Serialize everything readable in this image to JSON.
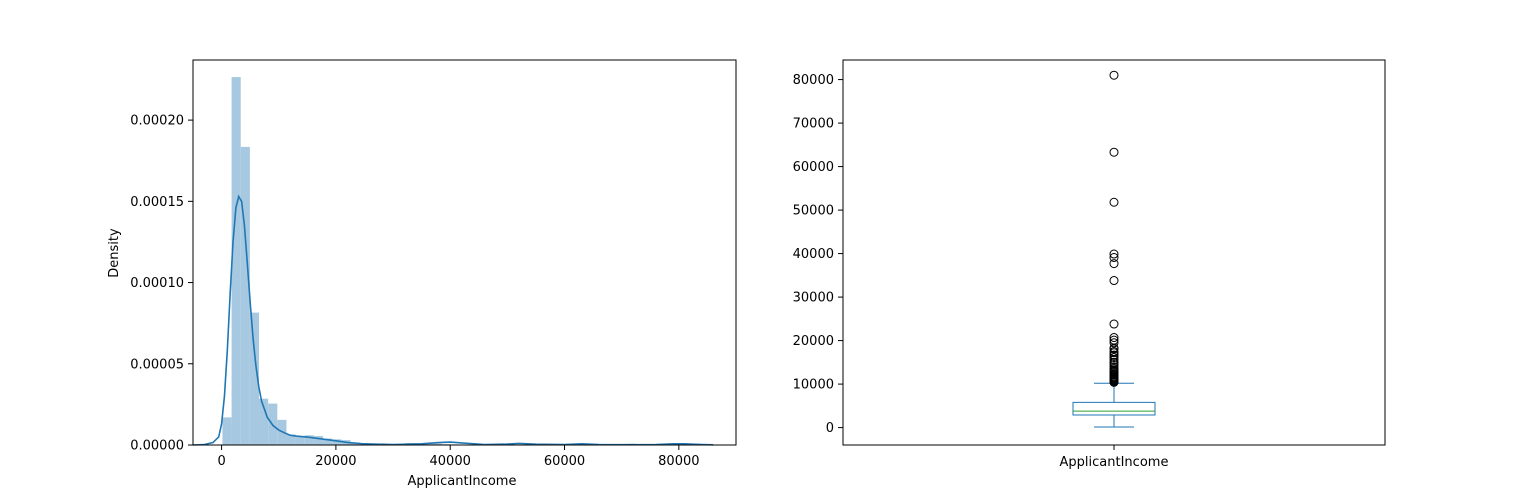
{
  "chart_data": [
    {
      "type": "histogram",
      "xlabel": "ApplicantIncome",
      "ylabel": "Density",
      "xlim": [
        -5000,
        90000
      ],
      "ylim": [
        0,
        0.000237
      ],
      "x_ticks": [
        0,
        20000,
        40000,
        60000,
        80000
      ],
      "x_tick_labels": [
        "0",
        "20000",
        "40000",
        "60000",
        "80000"
      ],
      "y_ticks": [
        0,
        5e-05,
        0.0001,
        0.00015,
        0.0002
      ],
      "y_tick_labels": [
        "0.00000",
        "0.00005",
        "0.00010",
        "0.00015",
        "0.00020"
      ],
      "grid": false,
      "histogram": {
        "color": "#a6c8e0",
        "bin_width": 1600,
        "bins_start": 150,
        "densities": [
          1.7e-05,
          0.0002265,
          0.0001835,
          8.15e-05,
          2.85e-05,
          2.55e-05,
          1.55e-05,
          6.5e-06,
          5e-06,
          6e-06,
          5.5e-06,
          4e-06,
          3.5e-06,
          3e-06,
          1.5e-06,
          1e-06,
          8e-07,
          5e-07,
          4e-07,
          4e-07,
          1.2e-06,
          1e-06,
          1.3e-06,
          8e-07,
          5e-07,
          3e-07,
          3e-07,
          3e-07,
          3e-07,
          3e-07,
          3e-07,
          8e-07,
          3e-07,
          3e-07,
          3e-07,
          3e-07,
          3e-07,
          3e-07,
          8e-07,
          3e-07,
          3e-07,
          3e-07,
          3e-07,
          3e-07,
          3e-07,
          3e-07,
          3e-07,
          3e-07,
          3e-07,
          8e-07
        ]
      },
      "kde": {
        "color": "#1f77b4",
        "x": [
          -5000,
          -3000,
          -1500,
          -500,
          0,
          500,
          1000,
          1500,
          2000,
          2500,
          3000,
          3500,
          4000,
          4500,
          5000,
          5500,
          6000,
          6500,
          7000,
          8000,
          9000,
          10000,
          11000,
          12000,
          13000,
          14000,
          15000,
          16000,
          18000,
          20000,
          22000,
          25000,
          30000,
          35000,
          38000,
          40000,
          42000,
          46000,
          50000,
          52000,
          55000,
          60000,
          63000,
          66000,
          70000,
          76000,
          79000,
          81000,
          84000,
          86000
        ],
        "y": [
          0,
          3e-07,
          1.5e-06,
          5e-06,
          1.3e-05,
          3e-05,
          5.8e-05,
          9.3e-05,
          0.000125,
          0.000146,
          0.000153,
          0.00015,
          0.000135,
          0.000112,
          8.8e-05,
          6.6e-05,
          4.9e-05,
          3.6e-05,
          2.7e-05,
          1.7e-05,
          1.2e-05,
          9.2e-06,
          7.5e-06,
          6e-06,
          5.5e-06,
          5.2e-06,
          4.9e-06,
          4.4e-06,
          3.5e-06,
          2.6e-06,
          1.6e-06,
          7e-07,
          3e-07,
          7e-07,
          1.5e-06,
          1.8e-06,
          1.3e-06,
          3e-07,
          6e-07,
          1e-06,
          5e-07,
          3e-07,
          7e-07,
          3e-07,
          2e-07,
          3e-07,
          7e-07,
          7e-07,
          3e-07,
          1e-07
        ]
      }
    },
    {
      "type": "box",
      "categories": [
        "ApplicantIncome"
      ],
      "ylim": [
        -4000,
        84500
      ],
      "y_ticks": [
        0,
        10000,
        20000,
        30000,
        40000,
        50000,
        60000,
        70000,
        80000
      ],
      "y_tick_labels": [
        "0",
        "10000",
        "20000",
        "30000",
        "40000",
        "50000",
        "60000",
        "70000",
        "80000"
      ],
      "grid": false,
      "box": {
        "color": "#1f77b4",
        "median_color": "#2ca02c",
        "min": 150,
        "q1": 2900,
        "median": 3800,
        "q3": 5800,
        "max": 10200
      },
      "outliers": [
        10400,
        10500,
        10700,
        10800,
        11000,
        11200,
        11400,
        11500,
        11700,
        12000,
        12200,
        12500,
        12800,
        13000,
        13300,
        13600,
        14000,
        14500,
        14900,
        15000,
        15600,
        16100,
        16600,
        16700,
        17200,
        17500,
        18100,
        18300,
        19500,
        20100,
        20700,
        23800,
        33800,
        37700,
        39100,
        39900,
        51800,
        63300,
        81000
      ]
    }
  ]
}
